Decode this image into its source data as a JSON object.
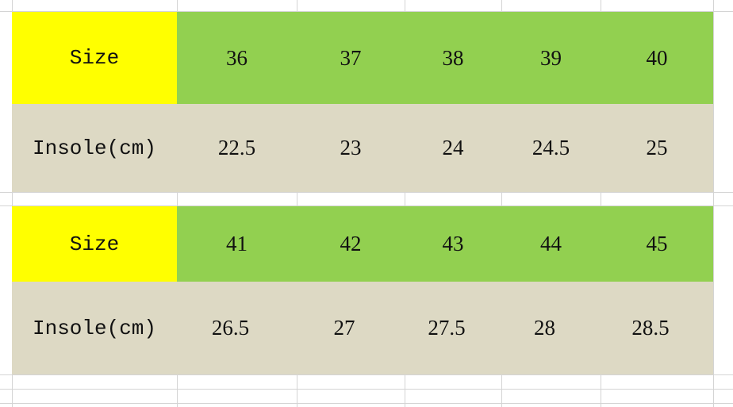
{
  "colors": {
    "label_header": "#ffff00",
    "size_row": "#92d050",
    "insole_row": "#ddd9c4"
  },
  "tables": [
    {
      "size_label": "Size",
      "insole_label": "Insole(cm)",
      "sizes": [
        "36",
        "37",
        "38",
        "39",
        "40"
      ],
      "insoles": [
        "22.5",
        "23",
        "24",
        "24.5",
        "25"
      ]
    },
    {
      "size_label": "Size",
      "insole_label": "Insole(cm)",
      "sizes": [
        "41",
        "42",
        "43",
        "44",
        "45"
      ],
      "insoles": [
        "26.5",
        "27",
        "27.5",
        "28",
        "28.5"
      ]
    }
  ]
}
